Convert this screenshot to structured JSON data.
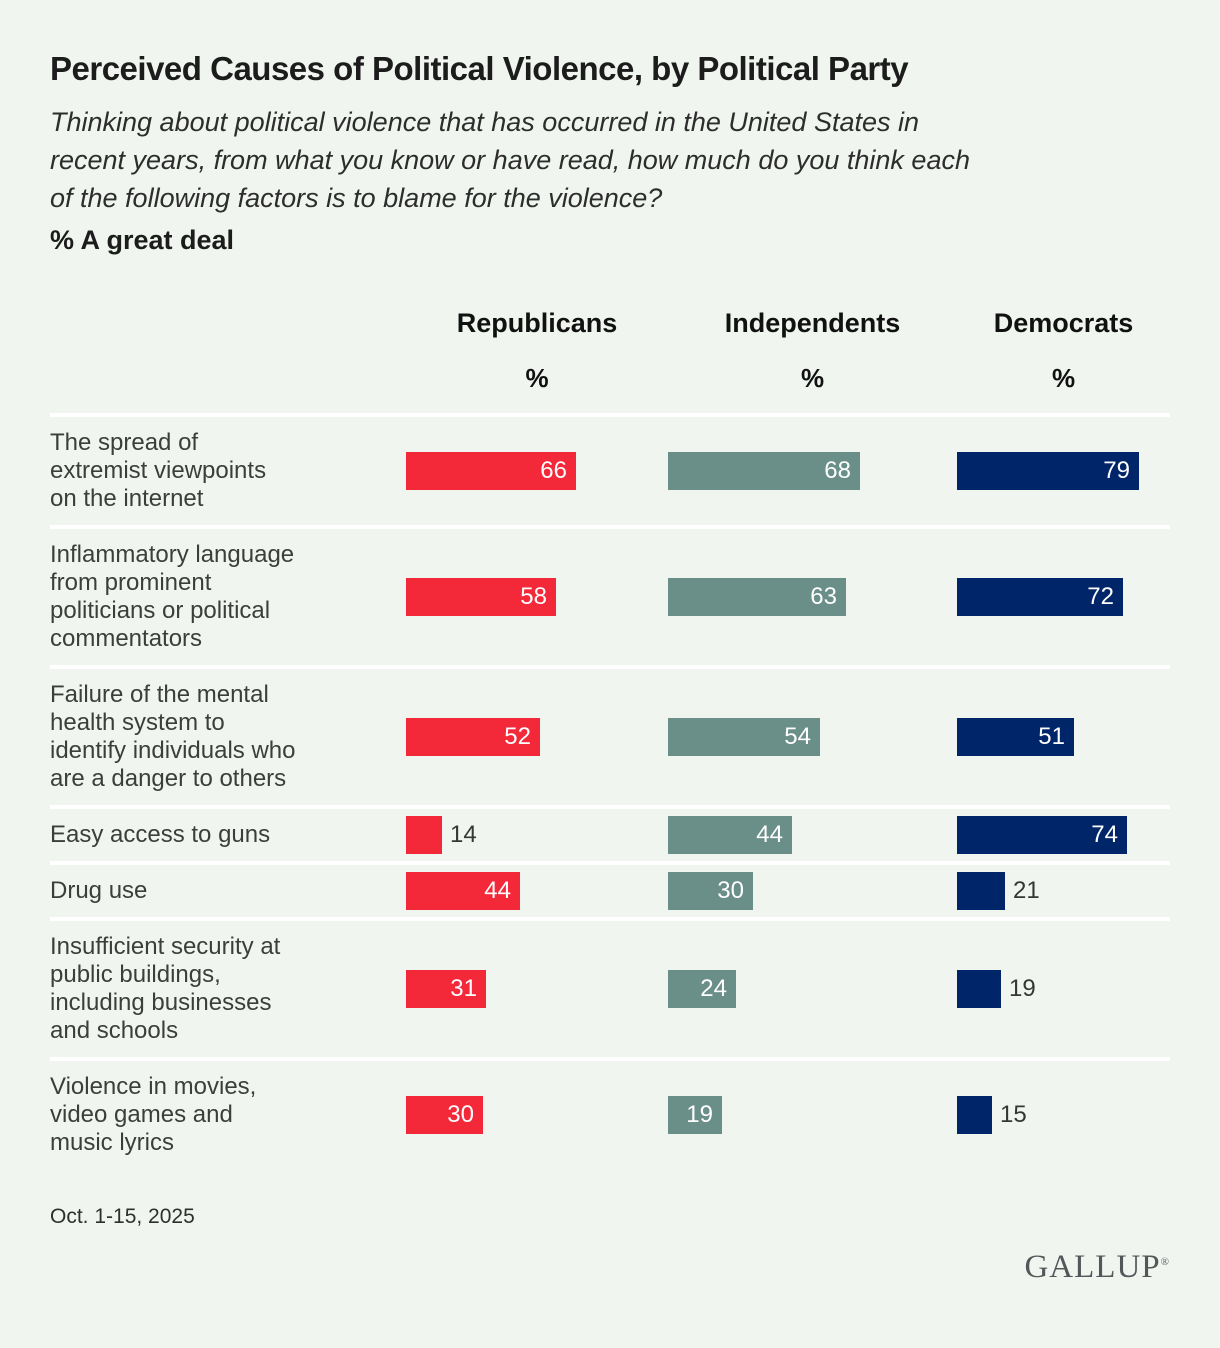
{
  "header": {
    "title": "Perceived Causes of Political Violence, by Political Party",
    "subtitle": "Thinking about political violence that has occurred in the United States in\nrecent years, from what you know or have read, how much do you think each\nof the following factors is to blame for the violence?",
    "measure_label": "% A great deal"
  },
  "chart_data": {
    "type": "bar",
    "orientation": "horizontal",
    "unit_label": "%",
    "value_range": [
      0,
      100
    ],
    "grid": false,
    "legend_position": "column-headers-top",
    "categories": [
      "The spread of\nextremist viewpoints\non the internet",
      "Inflammatory language\nfrom prominent\npoliticians or political\ncommentators",
      "Failure of the mental\nhealth system to\nidentify individuals who\nare a danger to others",
      "Easy access to guns",
      "Drug use",
      "Insufficient security at\npublic buildings,\nincluding businesses\nand schools",
      "Violence in movies,\nvideo games and\nmusic lyrics"
    ],
    "series": [
      {
        "name": "Republicans",
        "color": "#f3293a",
        "values": [
          66,
          58,
          52,
          14,
          44,
          31,
          30
        ]
      },
      {
        "name": "Independents",
        "color": "#6a8e88",
        "values": [
          68,
          63,
          54,
          44,
          30,
          24,
          19
        ]
      },
      {
        "name": "Democrats",
        "color": "#002569",
        "values": [
          79,
          72,
          51,
          74,
          21,
          19,
          15
        ]
      }
    ]
  },
  "colors": {
    "background": "#f0f6ef",
    "separator": "#ffffff",
    "label_text": "#3c3e3c",
    "value_inside_text": "#ffffff",
    "value_outside_text": "#363636"
  },
  "footer": {
    "date_range": "Oct. 1-15, 2025",
    "logo": "GALLUP",
    "logo_registered": "®"
  }
}
